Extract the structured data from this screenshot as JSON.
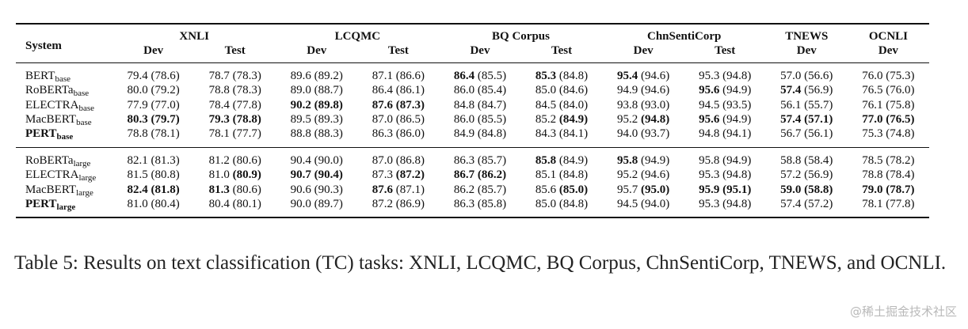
{
  "table": {
    "system_header": "System",
    "datasets": [
      "XNLI",
      "LCQMC",
      "BQ Corpus",
      "ChnSentiCorp",
      "TNEWS",
      "OCNLI"
    ],
    "split_headers": [
      "Dev",
      "Test",
      "Dev",
      "Test",
      "Dev",
      "Test",
      "Dev",
      "Test",
      "Dev",
      "Dev"
    ],
    "groups": [
      {
        "rows": [
          {
            "name": "BERT",
            "sub": "base",
            "bold_name": false,
            "cells": [
              {
                "text": "79.4 (78.6)"
              },
              {
                "text": "78.7 (78.3)"
              },
              {
                "text": "89.6 (89.2)"
              },
              {
                "text": "87.1 (86.6)"
              },
              {
                "bold": "86.4",
                "rest": " (85.5)"
              },
              {
                "bold": "85.3",
                "rest": " (84.8)"
              },
              {
                "bold": "95.4",
                "rest": " (94.6)"
              },
              {
                "text": "95.3 (94.8)"
              },
              {
                "text": "57.0 (56.6)"
              },
              {
                "text": "76.0 (75.3)"
              }
            ]
          },
          {
            "name": "RoBERTa",
            "sub": "base",
            "bold_name": false,
            "cells": [
              {
                "text": "80.0 (79.2)"
              },
              {
                "text": "78.8 (78.3)"
              },
              {
                "text": "89.0 (88.7)"
              },
              {
                "text": "86.4 (86.1)"
              },
              {
                "text": "86.0 (85.4)"
              },
              {
                "text": "85.0 (84.6)"
              },
              {
                "text": "94.9 (94.6)"
              },
              {
                "bold": "95.6",
                "rest": " (94.9)"
              },
              {
                "bold": "57.4",
                "rest": " (56.9)"
              },
              {
                "text": "76.5 (76.0)"
              }
            ]
          },
          {
            "name": "ELECTRA",
            "sub": "base",
            "bold_name": false,
            "cells": [
              {
                "text": "77.9 (77.0)"
              },
              {
                "text": "78.4 (77.8)"
              },
              {
                "bold": "90.2 (89.8)",
                "rest": ""
              },
              {
                "bold": "87.6 (87.3)",
                "rest": ""
              },
              {
                "text": "84.8 (84.7)"
              },
              {
                "text": "84.5 (84.0)"
              },
              {
                "text": "93.8 (93.0)"
              },
              {
                "text": "94.5 (93.5)"
              },
              {
                "text": "56.1 (55.7)"
              },
              {
                "text": "76.1 (75.8)"
              }
            ]
          },
          {
            "name": "MacBERT",
            "sub": "base",
            "bold_name": false,
            "cells": [
              {
                "bold": "80.3 (79.7)",
                "rest": ""
              },
              {
                "bold": "79.3 (78.8)",
                "rest": ""
              },
              {
                "text": "89.5 (89.3)"
              },
              {
                "text": "87.0 (86.5)"
              },
              {
                "text": "86.0 (85.5)"
              },
              {
                "pre": "85.2 ",
                "bold": "(84.9)"
              },
              {
                "pre": "95.2 ",
                "bold": "(94.8)"
              },
              {
                "bold": "95.6",
                "rest": " (94.9)"
              },
              {
                "bold": "57.4 (57.1)",
                "rest": ""
              },
              {
                "bold": "77.0 (76.5)",
                "rest": ""
              }
            ]
          },
          {
            "name": "PERT",
            "sub": "base",
            "bold_name": true,
            "cells": [
              {
                "text": "78.8 (78.1)"
              },
              {
                "text": "78.1 (77.7)"
              },
              {
                "text": "88.8 (88.3)"
              },
              {
                "text": "86.3 (86.0)"
              },
              {
                "text": "84.9 (84.8)"
              },
              {
                "text": "84.3 (84.1)"
              },
              {
                "text": "94.0 (93.7)"
              },
              {
                "text": "94.8 (94.1)"
              },
              {
                "text": "56.7 (56.1)"
              },
              {
                "text": "75.3 (74.8)"
              }
            ]
          }
        ]
      },
      {
        "rows": [
          {
            "name": "RoBERTa",
            "sub": "large",
            "bold_name": false,
            "cells": [
              {
                "text": "82.1 (81.3)"
              },
              {
                "text": "81.2 (80.6)"
              },
              {
                "text": "90.4 (90.0)"
              },
              {
                "text": "87.0 (86.8)"
              },
              {
                "text": "86.3 (85.7)"
              },
              {
                "bold": "85.8",
                "rest": " (84.9)"
              },
              {
                "bold": "95.8",
                "rest": " (94.9)"
              },
              {
                "text": "95.8 (94.9)"
              },
              {
                "text": "58.8 (58.4)"
              },
              {
                "text": "78.5 (78.2)"
              }
            ]
          },
          {
            "name": "ELECTRA",
            "sub": "large",
            "bold_name": false,
            "cells": [
              {
                "text": "81.5 (80.8)"
              },
              {
                "pre": "81.0 ",
                "bold": "(80.9)"
              },
              {
                "bold": "90.7 (90.4)",
                "rest": ""
              },
              {
                "pre": "87.3 ",
                "bold": "(87.2)"
              },
              {
                "bold": "86.7 (86.2)",
                "rest": ""
              },
              {
                "text": "85.1 (84.8)"
              },
              {
                "text": "95.2 (94.6)"
              },
              {
                "text": "95.3 (94.8)"
              },
              {
                "text": "57.2 (56.9)"
              },
              {
                "text": "78.8 (78.4)"
              }
            ]
          },
          {
            "name": "MacBERT",
            "sub": "large",
            "bold_name": false,
            "cells": [
              {
                "bold": "82.4 (81.8)",
                "rest": ""
              },
              {
                "bold": "81.3",
                "rest": " (80.6)"
              },
              {
                "text": "90.6 (90.3)"
              },
              {
                "bold": "87.6",
                "rest": " (87.1)"
              },
              {
                "text": "86.2 (85.7)"
              },
              {
                "pre": "85.6 ",
                "bold": "(85.0)"
              },
              {
                "pre": "95.7 ",
                "bold": "(95.0)"
              },
              {
                "bold": "95.9 (95.1)",
                "rest": ""
              },
              {
                "bold": "59.0 (58.8)",
                "rest": ""
              },
              {
                "bold": "79.0 (78.7)",
                "rest": ""
              }
            ]
          },
          {
            "name": "PERT",
            "sub": "large",
            "bold_name": true,
            "cells": [
              {
                "text": "81.0 (80.4)"
              },
              {
                "text": "80.4 (80.1)"
              },
              {
                "text": "90.0 (89.7)"
              },
              {
                "text": "87.2 (86.9)"
              },
              {
                "text": "86.3 (85.8)"
              },
              {
                "text": "85.0 (84.8)"
              },
              {
                "text": "94.5 (94.0)"
              },
              {
                "text": "95.3 (94.8)"
              },
              {
                "text": "57.4 (57.2)"
              },
              {
                "text": "78.1 (77.8)"
              }
            ]
          }
        ]
      }
    ]
  },
  "caption": "Table 5:   Results on text classification (TC) tasks: XNLI, LCQMC, BQ Corpus, ChnSentiCorp, TNEWS, and OCNLI.",
  "watermark": "@稀土掘金技术社区"
}
